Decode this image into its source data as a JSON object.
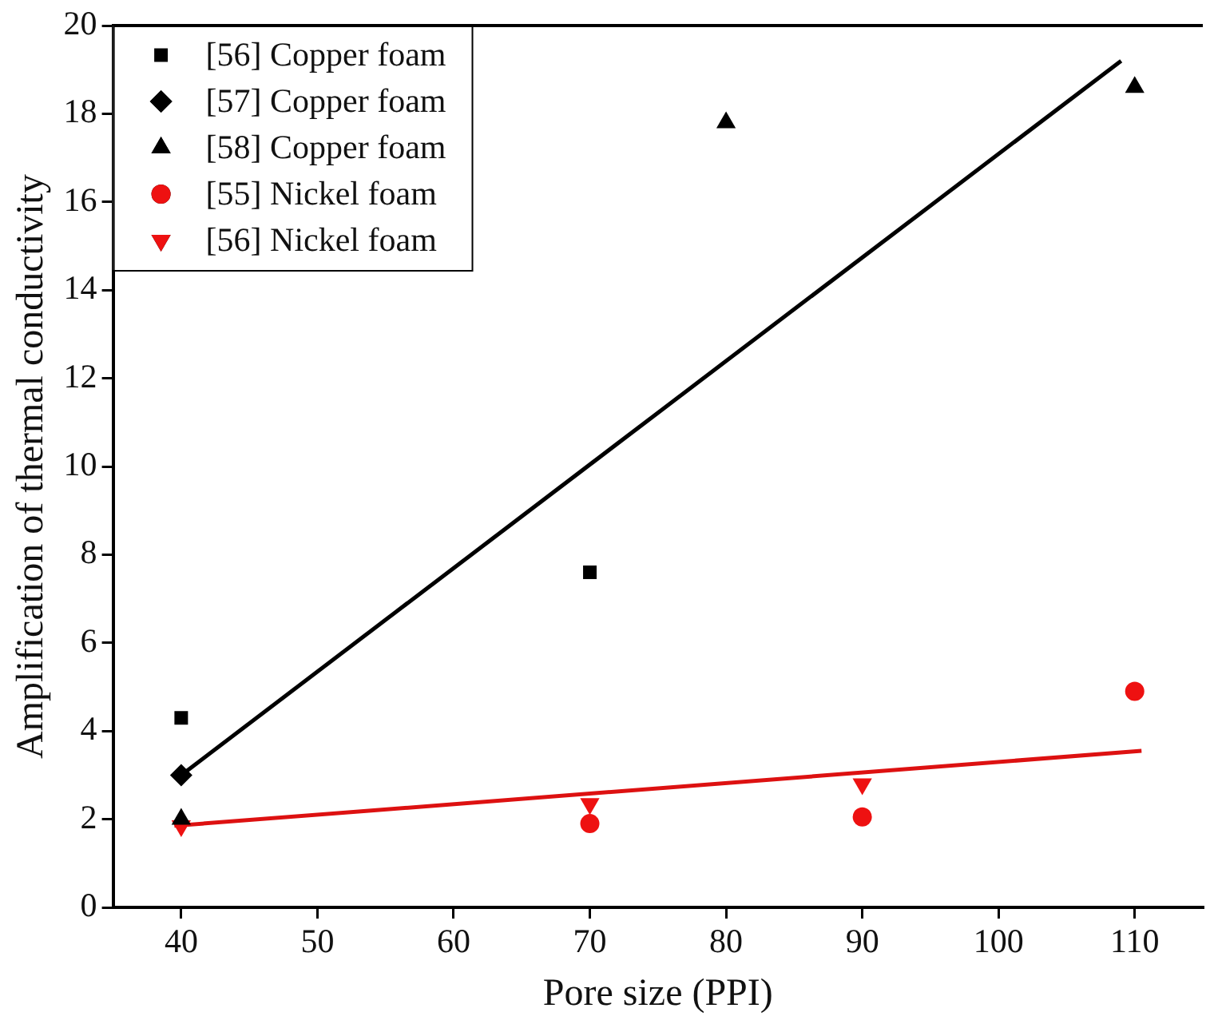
{
  "chart_data": {
    "type": "scatter",
    "xlabel": "Pore size (PPI)",
    "ylabel": "Amplification of thermal conductivity",
    "xlim": [
      35,
      115
    ],
    "xticks": [
      40,
      50,
      60,
      70,
      80,
      90,
      100,
      110
    ],
    "ylim": [
      0,
      20
    ],
    "yticks": [
      0,
      2,
      4,
      6,
      8,
      10,
      12,
      14,
      16,
      18,
      20
    ],
    "grid": false,
    "legend": "top left",
    "series": [
      {
        "name": "[56] Copper foam",
        "color": "#000000",
        "marker": "square",
        "x": [
          40,
          70
        ],
        "values": [
          4.3,
          7.6
        ]
      },
      {
        "name": "[57] Copper foam",
        "color": "#000000",
        "marker": "diamond",
        "x": [
          40
        ],
        "values": [
          3.0
        ]
      },
      {
        "name": "[58] Copper foam",
        "color": "#000000",
        "marker": "triangle",
        "x": [
          40,
          80,
          110
        ],
        "values": [
          2.0,
          17.8,
          18.6
        ]
      },
      {
        "name": "[55] Nickel foam",
        "color": "#ee1111",
        "marker": "circle",
        "x": [
          70,
          90,
          110
        ],
        "values": [
          1.9,
          2.05,
          4.9
        ]
      },
      {
        "name": "[56] Nickel foam",
        "color": "#ee1111",
        "marker": "triangle-down",
        "x": [
          40,
          70,
          90
        ],
        "values": [
          1.85,
          2.35,
          2.8
        ]
      },
      {
        "type": "line",
        "color": "#000000",
        "marker": "none",
        "x": [
          40,
          109
        ],
        "values": [
          3.0,
          19.2
        ]
      },
      {
        "type": "line",
        "color": "#dd1111",
        "marker": "none",
        "x": [
          39.5,
          110.5
        ],
        "values": [
          1.85,
          3.55
        ]
      }
    ]
  }
}
